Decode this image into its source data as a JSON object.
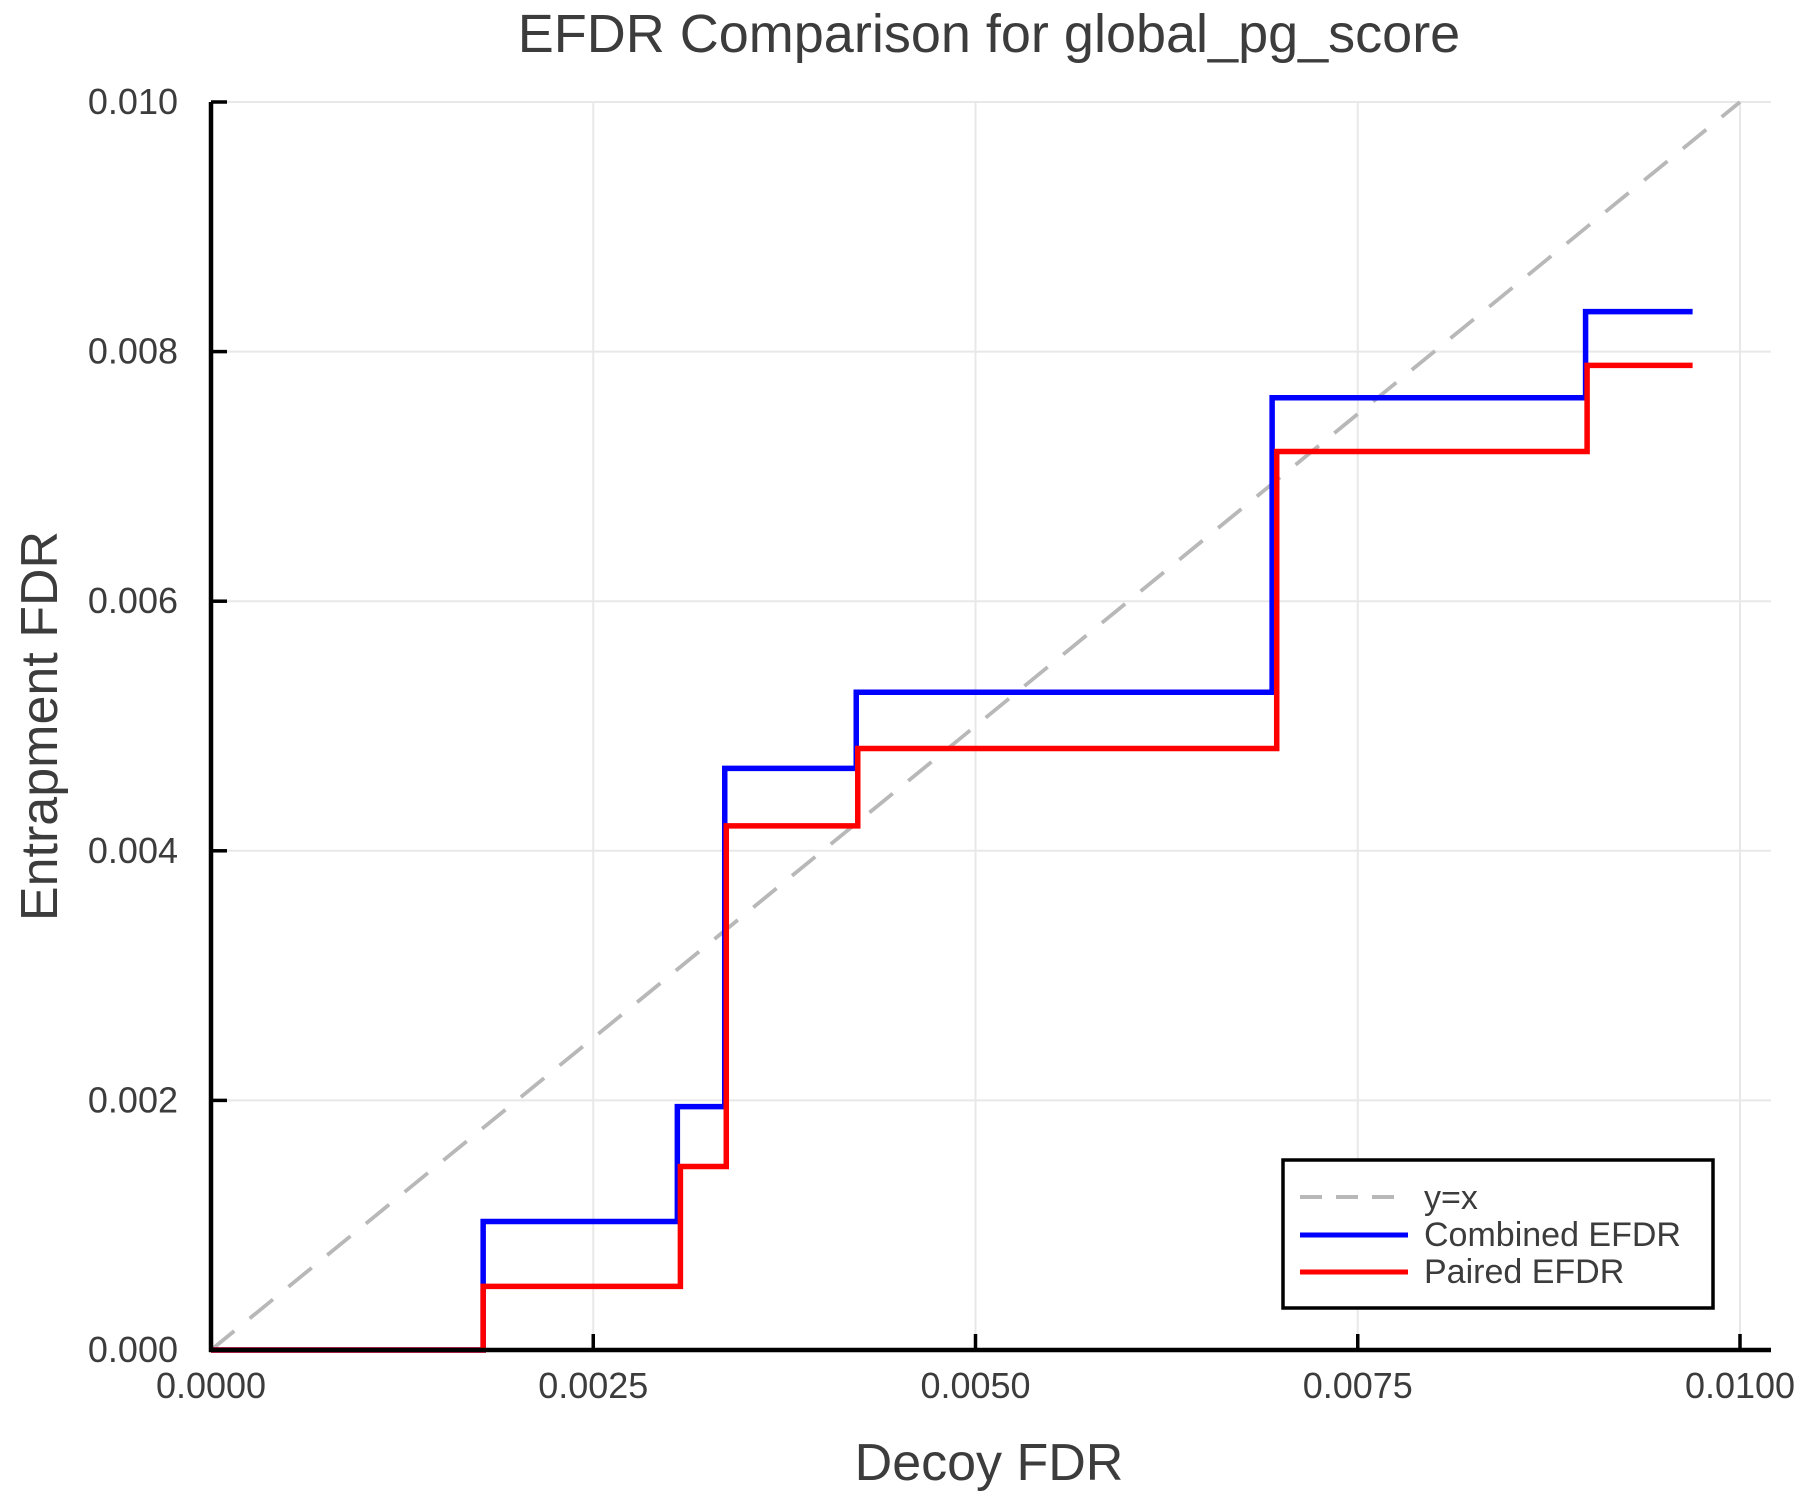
{
  "figure": {
    "background": "#ffffff",
    "text_color": "#3c3c3c"
  },
  "chart_data": {
    "type": "line",
    "subtype": "step-post",
    "title": "EFDR Comparison for global_pg_score",
    "xlabel": "Decoy FDR",
    "ylabel": "Entrapment FDR",
    "xlim": [
      0.0,
      0.0102
    ],
    "ylim": [
      0.0,
      0.01
    ],
    "grid": true,
    "grid_color": "#e8e8e8",
    "x_ticks": {
      "values": [
        0.0,
        0.0025,
        0.005,
        0.0075,
        0.01
      ],
      "labels": [
        "0.0000",
        "0.0025",
        "0.0050",
        "0.0075",
        "0.0100"
      ]
    },
    "y_ticks": {
      "values": [
        0.0,
        0.002,
        0.004,
        0.006,
        0.008,
        0.01
      ],
      "labels": [
        "0.000",
        "0.002",
        "0.004",
        "0.006",
        "0.008",
        "0.010"
      ]
    },
    "reference_line": {
      "label": "y=x",
      "color": "#b8b8b8",
      "dashed": true,
      "x": [
        0.0,
        0.01
      ],
      "y": [
        0.0,
        0.01
      ]
    },
    "series": [
      {
        "name": "Combined EFDR",
        "color": "#0000ff",
        "step_points": [
          [
            0.0,
            0.0
          ],
          [
            0.00178,
            0.00103
          ],
          [
            0.00305,
            0.00195
          ],
          [
            0.00336,
            0.00466
          ],
          [
            0.00422,
            0.00527
          ],
          [
            0.00694,
            0.00763
          ],
          [
            0.00899,
            0.00832
          ]
        ],
        "x_end": 0.00969
      },
      {
        "name": "Paired EFDR",
        "color": "#ff0000",
        "step_points": [
          [
            0.0,
            0.0
          ],
          [
            0.00178,
            0.00051
          ],
          [
            0.00307,
            0.00147
          ],
          [
            0.00337,
            0.0042
          ],
          [
            0.00423,
            0.00482
          ],
          [
            0.00697,
            0.0072
          ],
          [
            0.009,
            0.00789
          ]
        ],
        "x_end": 0.00969
      }
    ],
    "legend": {
      "position": "lower right",
      "items": [
        {
          "label": "y=x",
          "color": "#b8b8b8",
          "style": "dashed"
        },
        {
          "label": "Combined EFDR",
          "color": "#0000ff",
          "style": "solid"
        },
        {
          "label": "Paired EFDR",
          "color": "#ff0000",
          "style": "solid"
        }
      ]
    }
  }
}
